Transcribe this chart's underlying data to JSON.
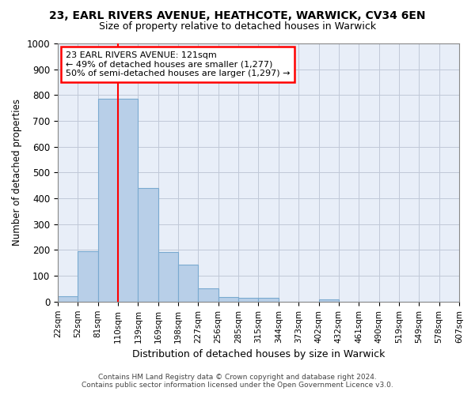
{
  "title1": "23, EARL RIVERS AVENUE, HEATHCOTE, WARWICK, CV34 6EN",
  "title2": "Size of property relative to detached houses in Warwick",
  "xlabel": "Distribution of detached houses by size in Warwick",
  "ylabel": "Number of detached properties",
  "footer1": "Contains HM Land Registry data © Crown copyright and database right 2024.",
  "footer2": "Contains public sector information licensed under the Open Government Licence v3.0.",
  "annotation_line1": "23 EARL RIVERS AVENUE: 121sqm",
  "annotation_line2": "← 49% of detached houses are smaller (1,277)",
  "annotation_line3": "50% of semi-detached houses are larger (1,297) →",
  "bar_values": [
    20,
    195,
    785,
    785,
    440,
    193,
    142,
    50,
    17,
    14,
    14,
    0,
    0,
    10,
    0,
    0,
    0,
    0,
    0,
    0
  ],
  "bar_labels": [
    "22sqm",
    "52sqm",
    "81sqm",
    "110sqm",
    "139sqm",
    "169sqm",
    "198sqm",
    "227sqm",
    "256sqm",
    "285sqm",
    "315sqm",
    "344sqm",
    "373sqm",
    "402sqm",
    "432sqm",
    "461sqm",
    "490sqm",
    "519sqm",
    "549sqm",
    "578sqm",
    "607sqm"
  ],
  "bar_color": "#b8cfe8",
  "bar_edge_color": "#7aaad0",
  "vline_x": 3.0,
  "vline_color": "red",
  "ylim": [
    0,
    1000
  ],
  "yticks": [
    0,
    100,
    200,
    300,
    400,
    500,
    600,
    700,
    800,
    900,
    1000
  ],
  "annotation_box_color": "red",
  "annotation_box_facecolor": "white",
  "bg_color": "#e8eef8",
  "grid_color": "#c0c8d8",
  "fig_width": 6.0,
  "fig_height": 5.0,
  "dpi": 100
}
